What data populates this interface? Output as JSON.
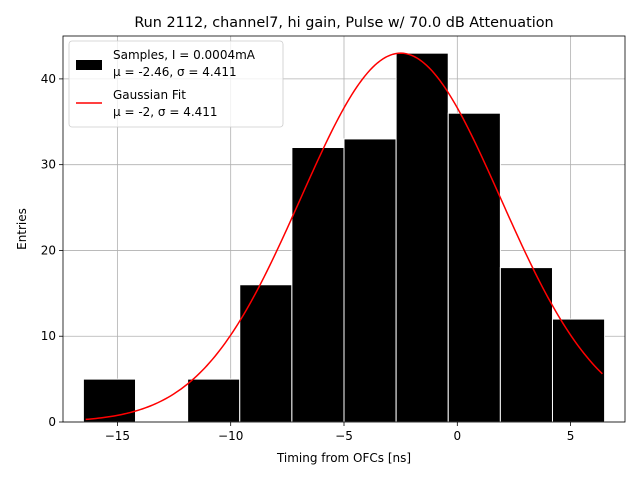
{
  "chart_data": {
    "type": "bar",
    "title": "Run 2112, channel7, hi gain, Pulse w/ 70.0 dB Attenuation",
    "xlabel": "Timing from OFCs [ns]",
    "ylabel": "Entries",
    "xlim": [
      -17.4,
      7.4
    ],
    "ylim": [
      0,
      45
    ],
    "grid": true,
    "legend_position": "top-left",
    "x_ticks": [
      -15,
      -10,
      -5,
      0,
      5
    ],
    "x_tick_labels": [
      "−15",
      "−10",
      "−5",
      "0",
      "5"
    ],
    "y_ticks": [
      0,
      10,
      20,
      30,
      40
    ],
    "y_tick_labels": [
      "0",
      "10",
      "20",
      "30",
      "40"
    ],
    "histogram": {
      "name": "Samples, I = 0.0004mA",
      "stats_label": "μ = -2.46, σ = 4.411",
      "color": "#000000",
      "edge_color": "#ffffff",
      "bins": [
        {
          "start": -16.5,
          "end": -14.2,
          "count": 5
        },
        {
          "start": -14.2,
          "end": -11.9,
          "count": 0
        },
        {
          "start": -11.9,
          "end": -9.6,
          "count": 5
        },
        {
          "start": -9.6,
          "end": -7.3,
          "count": 16
        },
        {
          "start": -7.3,
          "end": -5.0,
          "count": 32
        },
        {
          "start": -5.0,
          "end": -2.7,
          "count": 33
        },
        {
          "start": -2.7,
          "end": -0.4,
          "count": 43
        },
        {
          "start": -0.4,
          "end": 1.9,
          "count": 36
        },
        {
          "start": 1.9,
          "end": 4.2,
          "count": 18
        },
        {
          "start": 4.2,
          "end": 6.5,
          "count": 12
        }
      ]
    },
    "fit": {
      "name": "Gaussian Fit",
      "stats_label": "μ = -2, σ = 4.411",
      "color": "#ff0000",
      "amplitude": 43,
      "mu": -2.5,
      "sigma": 4.411,
      "x_range": [
        -16.4,
        6.4
      ]
    }
  }
}
